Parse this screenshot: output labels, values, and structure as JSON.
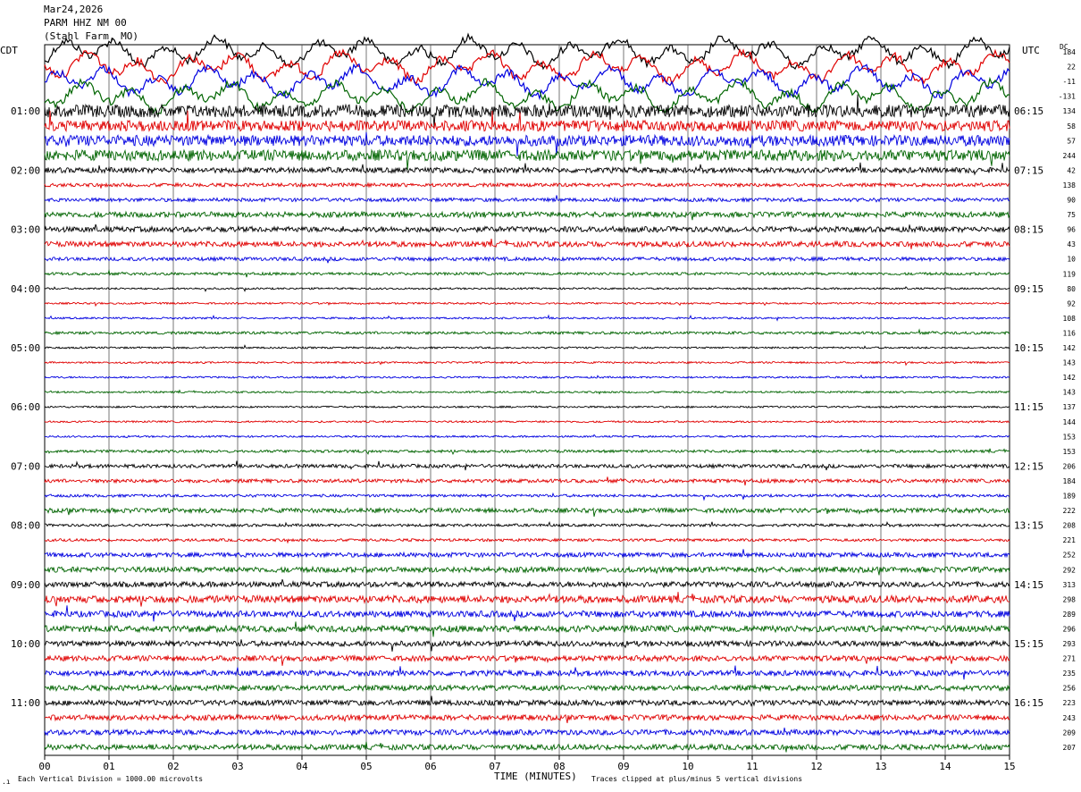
{
  "header": {
    "date": "Mar24,2026",
    "station": "PARM HHZ NM 00",
    "location": "(Stahl Farm, MO)"
  },
  "left_tz": "CDT",
  "right_tz": "UTC",
  "dc_label": "DC",
  "footer": {
    "left_note": "Each Vertical Division = 1000.00 microvolts",
    "xlabel": "TIME (MINUTES)",
    "right_note": "Traces clipped at plus/minus 5 vertical divisions"
  },
  "colors": {
    "trace_cycle": [
      "#000000",
      "#e00000",
      "#0000e0",
      "#006400"
    ],
    "grid": "#000000"
  },
  "chart_data": {
    "type": "line",
    "xlim": [
      0,
      15
    ],
    "x_ticks": [
      "00",
      "01",
      "02",
      "03",
      "04",
      "05",
      "06",
      "07",
      "08",
      "09",
      "10",
      "11",
      "12",
      "13",
      "14",
      "15"
    ],
    "left_hour_labels": [
      "01:00",
      "02:00",
      "03:00",
      "04:00",
      "05:00",
      "06:00",
      "07:00",
      "08:00",
      "09:00",
      "10:00",
      "11:00"
    ],
    "right_hour_labels": [
      "06:15",
      "07:15",
      "08:15",
      "09:15",
      "10:15",
      "11:15",
      "12:15",
      "13:15",
      "14:15",
      "15:15",
      "16:15"
    ],
    "dc_offsets": [
      "184",
      "22",
      "-11",
      "-131",
      "134",
      "58",
      "57",
      "244",
      "42",
      "138",
      "90",
      "75",
      "96",
      "43",
      "10",
      "119",
      "80",
      "92",
      "108",
      "116",
      "142",
      "143",
      "142",
      "143",
      "137",
      "144",
      "153",
      "153",
      "206",
      "184",
      "189",
      "222",
      "208",
      "221",
      "252",
      "292",
      "313",
      "298",
      "289",
      "296",
      "293",
      "271",
      "235",
      "256",
      "223",
      "243",
      "209",
      "207"
    ],
    "trace_amplitude": [
      18,
      18,
      18,
      18,
      7,
      6,
      6,
      6,
      3,
      2,
      2,
      3,
      3,
      3,
      2,
      1.5,
      1,
      1,
      1,
      1.5,
      1,
      1,
      1,
      1,
      1,
      1,
      1,
      1.5,
      2,
      2,
      1.5,
      2.5,
      1.5,
      1.5,
      2.5,
      3,
      3,
      4,
      3.5,
      3.5,
      3,
      3,
      3,
      3,
      3,
      3,
      3,
      3
    ],
    "trace_count": 48
  }
}
